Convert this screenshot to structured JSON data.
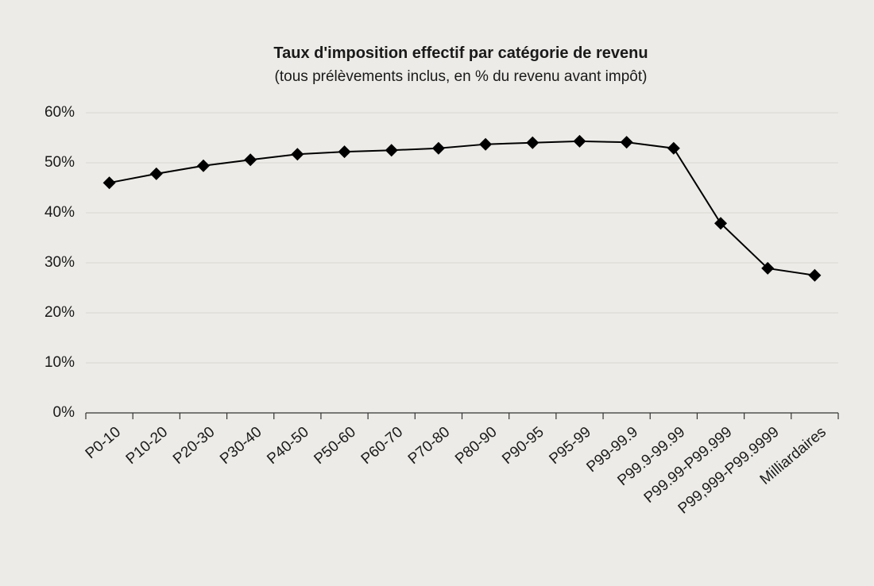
{
  "chart_data": {
    "type": "line",
    "title": "Taux d'imposition effectif par catégorie de revenu",
    "subtitle": "(tous prélèvements inclus, en % du revenu avant impôt)",
    "categories": [
      "P0-10",
      "P10-20",
      "P20-30",
      "P30-40",
      "P40-50",
      "P50-60",
      "P60-70",
      "P70-80",
      "P80-90",
      "P90-95",
      "P95-99",
      "P99-99.9",
      "P99.9-99.99",
      "P99.99-P99.999",
      "P99,999-P99.9999",
      "Milliardaires"
    ],
    "series": [
      {
        "name": "Taux d'imposition effectif",
        "color": "#000000",
        "values": [
          46.0,
          47.8,
          49.4,
          50.6,
          51.7,
          52.2,
          52.5,
          52.9,
          53.7,
          54.0,
          54.3,
          54.1,
          52.9,
          37.9,
          28.9,
          27.5
        ]
      }
    ],
    "ylim": [
      0,
      60
    ],
    "yticks": [
      {
        "value": 0,
        "label": "0%"
      },
      {
        "value": 10,
        "label": "10%"
      },
      {
        "value": 20,
        "label": "20%"
      },
      {
        "value": 30,
        "label": "30%"
      },
      {
        "value": 40,
        "label": "40%"
      },
      {
        "value": 50,
        "label": "50%"
      },
      {
        "value": 60,
        "label": "60%"
      }
    ],
    "grid": true
  }
}
